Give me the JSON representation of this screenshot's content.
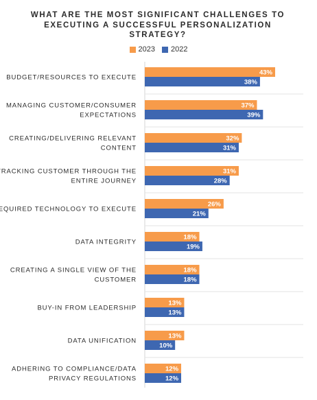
{
  "chart_data": {
    "type": "bar",
    "orientation": "horizontal",
    "title_lines": [
      "WHAT ARE THE MOST SIGNIFICANT CHALLENGES TO",
      "EXECUTING A SUCCESSFUL PERSONALIZATION",
      "STRATEGY?"
    ],
    "categories": [
      [
        "BUDGET/RESOURCES TO EXECUTE"
      ],
      [
        "MANAGING CUSTOMER/CONSUMER",
        "EXPECTATIONS"
      ],
      [
        "CREATING/DELIVERING RELEVANT",
        "CONTENT"
      ],
      [
        "TRACKING CUSTOMER THROUGH THE",
        "ENTIRE JOURNEY"
      ],
      [
        "REQUIRED TECHNOLOGY TO EXECUTE"
      ],
      [
        "DATA INTEGRITY"
      ],
      [
        "CREATING A SINGLE VIEW OF THE",
        "CUSTOMER"
      ],
      [
        "BUY-IN FROM LEADERSHIP"
      ],
      [
        "DATA UNIFICATION"
      ],
      [
        "ADHERING TO COMPLIANCE/DATA",
        "PRIVACY REGULATIONS"
      ]
    ],
    "series": [
      {
        "name": "2023",
        "color": "#f79b4a",
        "values": [
          43,
          37,
          32,
          31,
          26,
          18,
          18,
          13,
          13,
          12
        ]
      },
      {
        "name": "2022",
        "color": "#3e67b1",
        "values": [
          38,
          39,
          31,
          28,
          21,
          19,
          18,
          13,
          10,
          12
        ]
      }
    ],
    "value_suffix": "%",
    "legend_position": "top-center",
    "grid": false,
    "xlim": [
      0,
      43
    ]
  }
}
